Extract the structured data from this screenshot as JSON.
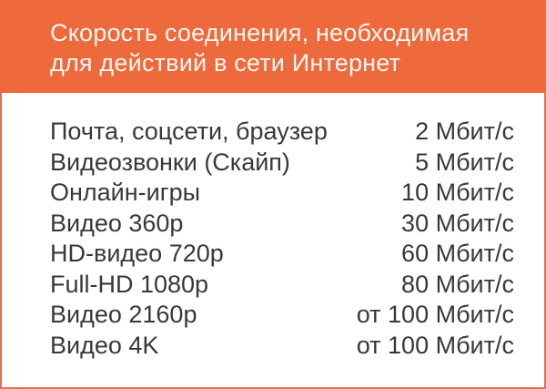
{
  "header": {
    "title_line1": "Скорость соединения, необходимая",
    "title_line2": "для действий в сети Интернет"
  },
  "colors": {
    "header_bg": "#ee693c",
    "frame_border": "#dd7150",
    "title_text": "#fdf8f4",
    "body_text": "#383838",
    "body_bg": "#ffffff"
  },
  "chart_data": {
    "type": "table",
    "title": "Скорость соединения, необходимая для действий в сети Интернет",
    "rows": [
      {
        "activity": "Почта, соцсети, браузер",
        "speed": "2 Мбит/с"
      },
      {
        "activity": "Видеозвонки (Скайп)",
        "speed": "5 Мбит/с"
      },
      {
        "activity": "Онлайн-игры",
        "speed": "10 Мбит/с"
      },
      {
        "activity": "Видео 360p",
        "speed": "30 Мбит/с"
      },
      {
        "activity": "HD-видео 720p",
        "speed": "60 Мбит/с"
      },
      {
        "activity": "Full-HD 1080p",
        "speed": "80 Мбит/с"
      },
      {
        "activity": "Видео 2160p",
        "speed": "от 100 Мбит/с"
      },
      {
        "activity": "Видео 4K",
        "speed": "от 100 Мбит/с"
      }
    ],
    "speeds_mbit_s": [
      2,
      5,
      10,
      30,
      60,
      80,
      100,
      100
    ],
    "units": "Мбит/с"
  }
}
